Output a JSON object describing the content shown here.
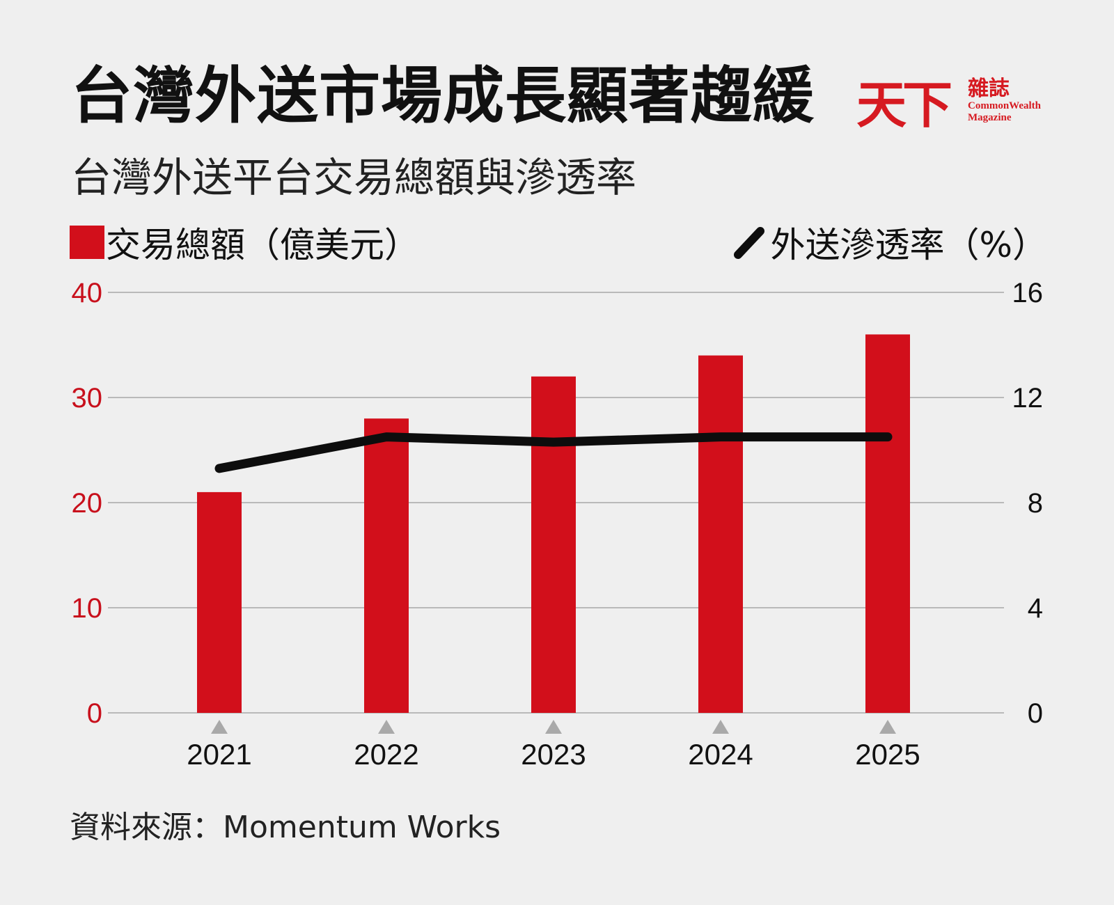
{
  "title": "台灣外送市場成長顯著趨緩",
  "subtitle": "台灣外送平台交易總額與滲透率",
  "logo": {
    "zh_big": "天下",
    "zh_small": "雜誌",
    "en_line1": "CommonWealth",
    "en_line2": "Magazine"
  },
  "legend": {
    "bar_label": "交易總額（億美元）",
    "line_label": "外送滲透率（%）"
  },
  "source": "資料來源：Momentum Works",
  "colors": {
    "bar": "#d20f1b",
    "line": "#0d0d0d",
    "left_axis": "#c8101c",
    "right_axis": "#111111",
    "grid": "#b9b9b9",
    "marker": "#a9a9a9"
  },
  "chart_data": {
    "type": "bar",
    "categories": [
      "2021",
      "2022",
      "2023",
      "2024",
      "2025"
    ],
    "series": [
      {
        "name": "交易總額（億美元）",
        "type": "bar",
        "axis": "left",
        "values": [
          21,
          28,
          32,
          34,
          36
        ]
      },
      {
        "name": "外送滲透率（%）",
        "type": "line",
        "axis": "right",
        "values": [
          9.3,
          10.5,
          10.3,
          10.5,
          10.5
        ]
      }
    ],
    "y_left": {
      "min": 0,
      "max": 40,
      "ticks": [
        "0",
        "10",
        "20",
        "30",
        "40"
      ]
    },
    "y_right": {
      "min": 0,
      "max": 16,
      "ticks": [
        "0",
        "4",
        "8",
        "12",
        "16"
      ]
    },
    "grid": true,
    "legend_position": "top"
  }
}
